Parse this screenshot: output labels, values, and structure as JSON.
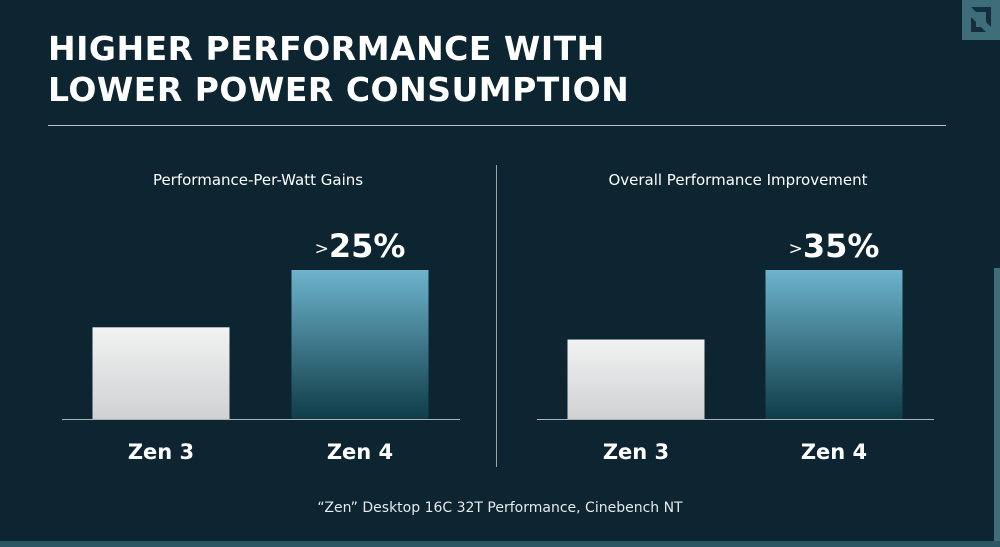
{
  "page": {
    "title_lines": [
      "HIGHER PERFORMANCE WITH",
      "LOWER POWER CONSUMPTION"
    ],
    "footnote": "“Zen” Desktop 16C 32T Performance, Cinebench NT",
    "colors": {
      "background": "#0c2530",
      "baseline_bar": "#e4e4e4",
      "highlight_bar_top": "#6db4cc",
      "highlight_bar_bottom": "#0f3c48",
      "accent": "#3e6c78"
    },
    "icons": {
      "logo": "amd-arrow-logo-icon"
    }
  },
  "chart_data": [
    {
      "type": "bar",
      "title": "Performance-Per-Watt Gains",
      "categories": [
        "Zen 3",
        "Zen 4"
      ],
      "values": [
        1.0,
        1.25
      ],
      "ylim": [
        0.6,
        1.25
      ],
      "data_labels": [
        "",
        ">25%"
      ],
      "grid": false,
      "legend": "none",
      "xlabel": "",
      "ylabel": ""
    },
    {
      "type": "bar",
      "title": "Overall Performance Improvement",
      "categories": [
        "Zen 3",
        "Zen 4"
      ],
      "values": [
        1.0,
        1.35
      ],
      "ylim": [
        0.6,
        1.35
      ],
      "data_labels": [
        "",
        ">35%"
      ],
      "grid": false,
      "legend": "none",
      "xlabel": "",
      "ylabel": ""
    }
  ]
}
